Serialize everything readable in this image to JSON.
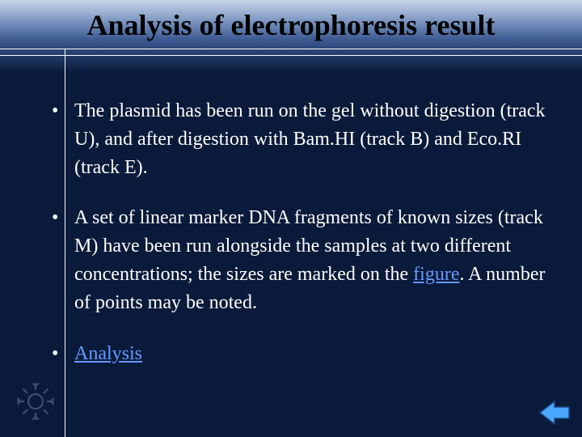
{
  "title": "Analysis of  electrophoresis result",
  "bullets": [
    {
      "parts": [
        {
          "text": "The plasmid has been run on the gel without digestion (track U), and after digestion with Bam.HI (track B) and Eco.RI (track E).",
          "link": false
        }
      ]
    },
    {
      "parts": [
        {
          "text": "A set of linear marker DNA fragments of known sizes (track M) have been run alongside the samples at two different concentrations; the sizes are marked on the ",
          "link": false
        },
        {
          "text": "figure",
          "link": true
        },
        {
          "text": ". A number of points may be noted.",
          "link": false
        }
      ]
    },
    {
      "parts": [
        {
          "text": "Analysis",
          "link": true
        }
      ]
    }
  ],
  "colors": {
    "background": "#0a1a3a",
    "text": "#ffffff",
    "link": "#6699ff",
    "title": "#000000",
    "line": "#ffffff",
    "arrow_fill": "#4aa8ff",
    "arrow_border": "#1a4a8a"
  }
}
